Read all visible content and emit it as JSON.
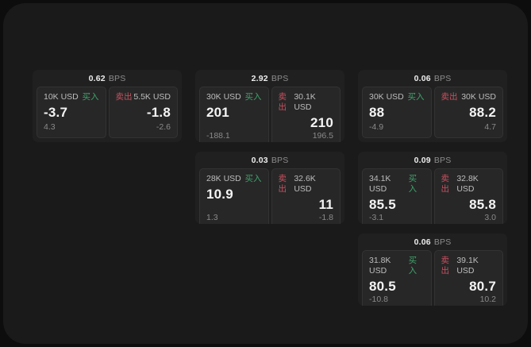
{
  "labels": {
    "bps_unit": "BPS",
    "buy": "买入",
    "sell": "卖出"
  },
  "colors": {
    "buy": "#3fa36c",
    "sell": "#c95060",
    "panel_bg": "#1a1a1a",
    "card_bg": "#202020",
    "tile_bg": "#272727"
  },
  "cards": [
    {
      "grid": {
        "col": 1,
        "row": 1
      },
      "bps": "0.62",
      "buy": {
        "size": "10K USD",
        "value": "-3.7",
        "delta": "4.3"
      },
      "sell": {
        "size": "5.5K USD",
        "value": "-1.8",
        "delta": "-2.6"
      }
    },
    {
      "grid": {
        "col": 2,
        "row": 1
      },
      "bps": "2.92",
      "buy": {
        "size": "30K USD",
        "value": "201",
        "delta": "-188.1"
      },
      "sell": {
        "size": "30.1K USD",
        "value": "210",
        "delta": "196.5"
      }
    },
    {
      "grid": {
        "col": 3,
        "row": 1
      },
      "bps": "0.06",
      "buy": {
        "size": "30K USD",
        "value": "88",
        "delta": "-4.9"
      },
      "sell": {
        "size": "30K USD",
        "value": "88.2",
        "delta": "4.7"
      }
    },
    {
      "grid": {
        "col": 2,
        "row": 2
      },
      "bps": "0.03",
      "buy": {
        "size": "28K USD",
        "value": "10.9",
        "delta": "1.3"
      },
      "sell": {
        "size": "32.6K USD",
        "value": "11",
        "delta": "-1.8"
      }
    },
    {
      "grid": {
        "col": 3,
        "row": 2
      },
      "bps": "0.09",
      "buy": {
        "size": "34.1K USD",
        "value": "85.5",
        "delta": "-3.1"
      },
      "sell": {
        "size": "32.8K USD",
        "value": "85.8",
        "delta": "3.0"
      }
    },
    {
      "grid": {
        "col": 3,
        "row": 3
      },
      "bps": "0.06",
      "buy": {
        "size": "31.8K USD",
        "value": "80.5",
        "delta": "-10.8"
      },
      "sell": {
        "size": "39.1K USD",
        "value": "80.7",
        "delta": "10.2"
      }
    }
  ]
}
